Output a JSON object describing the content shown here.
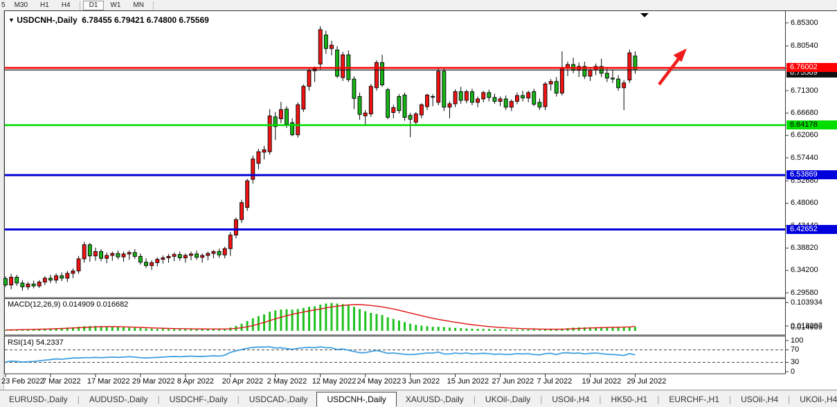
{
  "toolbar": {
    "partial_left": "5",
    "timeframes": [
      "M30",
      "H1",
      "H4",
      "D1",
      "W1",
      "MN"
    ],
    "active": "D1"
  },
  "title": {
    "dropdown_icon": "▼",
    "symbol": "USDCNH-,Daily",
    "ohlc": "6.78455 6.79421 6.74800 6.75569"
  },
  "price_axis": {
    "ticks": [
      6.853,
      6.8054,
      6.7592,
      6.713,
      6.6668,
      6.6206,
      6.5744,
      6.5268,
      6.4806,
      6.4344,
      6.3882,
      6.342,
      6.2958
    ],
    "badges": [
      {
        "text": "6.75569",
        "bg": "#111111",
        "fg": "#ffffff",
        "price": 6.749
      },
      {
        "text": "6.76002",
        "bg": "#fe0000",
        "fg": "#ffffff",
        "price": 6.76002
      },
      {
        "text": "6.64178",
        "bg": "#00dd00",
        "fg": "#000000",
        "price": 6.64178
      },
      {
        "text": "6.53869",
        "bg": "#0000dd",
        "fg": "#ffffff",
        "price": 6.53869
      },
      {
        "text": "6.42652",
        "bg": "#0000dd",
        "fg": "#ffffff",
        "price": 6.42652
      }
    ]
  },
  "hlines": [
    {
      "price": 6.75569,
      "color": "#1a1a1a",
      "width": 1.2
    },
    {
      "price": 6.76002,
      "color": "#fe0000",
      "width": 2.6
    },
    {
      "price": 6.64178,
      "color": "#00dd00",
      "width": 2.6
    },
    {
      "price": 6.53869,
      "color": "#0000d8",
      "width": 3
    },
    {
      "price": 6.42652,
      "color": "#0000d8",
      "width": 3
    }
  ],
  "chart_data": {
    "type": "candlestick",
    "symbol": "USDCNH-",
    "timeframe": "Daily",
    "open": "6.78455",
    "high": "6.79421",
    "low": "6.74800",
    "close": "6.75569",
    "up_color": "#f01414",
    "down_color": "#17b317",
    "wick_color": "#000000",
    "x_label_step": 8,
    "x_labels": [
      "23 Feb 2022",
      "7 Mar 2022",
      "17 Mar 2022",
      "29 Mar 2022",
      "8 Apr 2022",
      "20 Apr 2022",
      "2 May 2022",
      "12 May 2022",
      "24 May 2022",
      "3 Jun 2022",
      "15 Jun 2022",
      "27 Jun 2022",
      "7 Jul 2022",
      "19 Jul 2022",
      "29 Jul 2022"
    ],
    "candles": [
      [
        6.325,
        6.33,
        6.308,
        6.312
      ],
      [
        6.312,
        6.335,
        6.303,
        6.328
      ],
      [
        6.328,
        6.333,
        6.31,
        6.316
      ],
      [
        6.316,
        6.322,
        6.3,
        6.308
      ],
      [
        6.308,
        6.318,
        6.302,
        6.314
      ],
      [
        6.314,
        6.321,
        6.305,
        6.31
      ],
      [
        6.31,
        6.322,
        6.306,
        6.318
      ],
      [
        6.318,
        6.33,
        6.312,
        6.326
      ],
      [
        6.326,
        6.333,
        6.316,
        6.322
      ],
      [
        6.322,
        6.336,
        6.315,
        6.331
      ],
      [
        6.331,
        6.338,
        6.32,
        6.326
      ],
      [
        6.326,
        6.341,
        6.318,
        6.336
      ],
      [
        6.336,
        6.346,
        6.326,
        6.341
      ],
      [
        6.341,
        6.372,
        6.335,
        6.366
      ],
      [
        6.366,
        6.401,
        6.358,
        6.395
      ],
      [
        6.395,
        6.399,
        6.36,
        6.372
      ],
      [
        6.372,
        6.389,
        6.362,
        6.381
      ],
      [
        6.381,
        6.386,
        6.361,
        6.367
      ],
      [
        6.367,
        6.379,
        6.357,
        6.373
      ],
      [
        6.373,
        6.381,
        6.362,
        6.377
      ],
      [
        6.377,
        6.383,
        6.365,
        6.37
      ],
      [
        6.37,
        6.381,
        6.36,
        6.376
      ],
      [
        6.376,
        6.383,
        6.364,
        6.379
      ],
      [
        6.379,
        6.386,
        6.366,
        6.371
      ],
      [
        6.371,
        6.377,
        6.354,
        6.359
      ],
      [
        6.359,
        6.367,
        6.347,
        6.352
      ],
      [
        6.352,
        6.363,
        6.343,
        6.358
      ],
      [
        6.358,
        6.369,
        6.35,
        6.365
      ],
      [
        6.365,
        6.373,
        6.356,
        6.368
      ],
      [
        6.368,
        6.376,
        6.358,
        6.371
      ],
      [
        6.371,
        6.379,
        6.361,
        6.375
      ],
      [
        6.375,
        6.381,
        6.362,
        6.368
      ],
      [
        6.368,
        6.377,
        6.358,
        6.373
      ],
      [
        6.373,
        6.381,
        6.363,
        6.376
      ],
      [
        6.376,
        6.383,
        6.364,
        6.369
      ],
      [
        6.369,
        6.377,
        6.358,
        6.373
      ],
      [
        6.373,
        6.381,
        6.363,
        6.377
      ],
      [
        6.377,
        6.384,
        6.367,
        6.381
      ],
      [
        6.381,
        6.387,
        6.368,
        6.374
      ],
      [
        6.374,
        6.391,
        6.367,
        6.387
      ],
      [
        6.387,
        6.421,
        6.372,
        6.415
      ],
      [
        6.415,
        6.451,
        6.408,
        6.447
      ],
      [
        6.447,
        6.488,
        6.44,
        6.482
      ],
      [
        6.472,
        6.531,
        6.465,
        6.527
      ],
      [
        6.53,
        6.579,
        6.521,
        6.572
      ],
      [
        6.563,
        6.593,
        6.551,
        6.587
      ],
      [
        6.586,
        6.599,
        6.571,
        6.591
      ],
      [
        6.587,
        6.675,
        6.581,
        6.661
      ],
      [
        6.659,
        6.669,
        6.611,
        6.639
      ],
      [
        6.655,
        6.69,
        6.646,
        6.674
      ],
      [
        6.675,
        6.681,
        6.636,
        6.644
      ],
      [
        6.647,
        6.656,
        6.619,
        6.622
      ],
      [
        6.622,
        6.689,
        6.616,
        6.684
      ],
      [
        6.675,
        6.726,
        6.669,
        6.722
      ],
      [
        6.722,
        6.759,
        6.713,
        6.754
      ],
      [
        6.754,
        6.763,
        6.731,
        6.758
      ],
      [
        6.768,
        6.846,
        6.756,
        6.839
      ],
      [
        6.828,
        6.837,
        6.789,
        6.8
      ],
      [
        6.8,
        6.816,
        6.786,
        6.807
      ],
      [
        6.797,
        6.805,
        6.739,
        6.743
      ],
      [
        6.74,
        6.793,
        6.733,
        6.787
      ],
      [
        6.787,
        6.796,
        6.731,
        6.736
      ],
      [
        6.737,
        6.743,
        6.675,
        6.697
      ],
      [
        6.701,
        6.709,
        6.653,
        6.664
      ],
      [
        6.661,
        6.673,
        6.641,
        6.667
      ],
      [
        6.665,
        6.727,
        6.659,
        6.722
      ],
      [
        6.719,
        6.776,
        6.713,
        6.771
      ],
      [
        6.771,
        6.787,
        6.721,
        6.725
      ],
      [
        6.715,
        6.719,
        6.654,
        6.658
      ],
      [
        6.668,
        6.684,
        6.656,
        6.678
      ],
      [
        6.701,
        6.706,
        6.666,
        6.672
      ],
      [
        6.704,
        6.709,
        6.651,
        6.658
      ],
      [
        6.662,
        6.667,
        6.617,
        6.654
      ],
      [
        6.648,
        6.669,
        6.641,
        6.665
      ],
      [
        6.663,
        6.687,
        6.656,
        6.684
      ],
      [
        6.68,
        6.707,
        6.673,
        6.704
      ],
      [
        6.701,
        6.706,
        6.681,
        6.701
      ],
      [
        6.689,
        6.761,
        6.683,
        6.753
      ],
      [
        6.753,
        6.759,
        6.671,
        6.679
      ],
      [
        6.679,
        6.691,
        6.656,
        6.686
      ],
      [
        6.686,
        6.716,
        6.679,
        6.711
      ],
      [
        6.711,
        6.721,
        6.686,
        6.693
      ],
      [
        6.693,
        6.715,
        6.687,
        6.711
      ],
      [
        6.711,
        6.717,
        6.683,
        6.689
      ],
      [
        6.689,
        6.701,
        6.679,
        6.696
      ],
      [
        6.696,
        6.713,
        6.689,
        6.709
      ],
      [
        6.709,
        6.715,
        6.691,
        6.699
      ],
      [
        6.699,
        6.707,
        6.686,
        6.691
      ],
      [
        6.691,
        6.701,
        6.681,
        6.696
      ],
      [
        6.696,
        6.703,
        6.673,
        6.679
      ],
      [
        6.679,
        6.695,
        6.671,
        6.691
      ],
      [
        6.691,
        6.709,
        6.685,
        6.703
      ],
      [
        6.703,
        6.713,
        6.691,
        6.698
      ],
      [
        6.698,
        6.713,
        6.689,
        6.709
      ],
      [
        6.711,
        6.717,
        6.681,
        6.685
      ],
      [
        6.689,
        6.697,
        6.673,
        6.679
      ],
      [
        6.68,
        6.731,
        6.673,
        6.727
      ],
      [
        6.727,
        6.737,
        6.713,
        6.732
      ],
      [
        6.732,
        6.741,
        6.701,
        6.708
      ],
      [
        6.708,
        6.794,
        6.703,
        6.759
      ],
      [
        6.759,
        6.773,
        6.743,
        6.767
      ],
      [
        6.767,
        6.781,
        6.749,
        6.755
      ],
      [
        6.755,
        6.771,
        6.741,
        6.763
      ],
      [
        6.763,
        6.773,
        6.737,
        6.743
      ],
      [
        6.743,
        6.761,
        6.733,
        6.756
      ],
      [
        6.756,
        6.769,
        6.745,
        6.763
      ],
      [
        6.763,
        6.779,
        6.741,
        6.749
      ],
      [
        6.749,
        6.759,
        6.731,
        6.739
      ],
      [
        6.739,
        6.757,
        6.729,
        6.737
      ],
      [
        6.737,
        6.745,
        6.713,
        6.719
      ],
      [
        6.719,
        6.735,
        6.673,
        6.729
      ],
      [
        6.735,
        6.798,
        6.729,
        6.791
      ],
      [
        6.78455,
        6.79421,
        6.748,
        6.75569
      ]
    ]
  },
  "macd": {
    "label": "MACD(12,26,9)",
    "values": "0.014909 0.016682",
    "axis_max": "0.103934",
    "axis_low_labels": [
      "0.018297",
      "0.014909"
    ],
    "hist_color": "#1ec11e",
    "signal_color": "#e01010",
    "histogram": [
      0.003,
      0.004,
      0.004,
      0.005,
      0.005,
      0.006,
      0.007,
      0.008,
      0.009,
      0.01,
      0.011,
      0.012,
      0.013,
      0.015,
      0.017,
      0.018,
      0.018,
      0.017,
      0.016,
      0.015,
      0.014,
      0.013,
      0.012,
      0.011,
      0.01,
      0.009,
      0.008,
      0.007,
      0.007,
      0.006,
      0.006,
      0.006,
      0.006,
      0.006,
      0.006,
      0.006,
      0.006,
      0.007,
      0.007,
      0.008,
      0.012,
      0.018,
      0.026,
      0.036,
      0.046,
      0.054,
      0.06,
      0.07,
      0.075,
      0.078,
      0.079,
      0.078,
      0.08,
      0.084,
      0.088,
      0.09,
      0.096,
      0.1,
      0.102,
      0.1,
      0.098,
      0.094,
      0.088,
      0.08,
      0.072,
      0.066,
      0.062,
      0.058,
      0.05,
      0.044,
      0.038,
      0.032,
      0.026,
      0.022,
      0.019,
      0.017,
      0.015,
      0.015,
      0.014,
      0.012,
      0.011,
      0.01,
      0.009,
      0.008,
      0.0075,
      0.0072,
      0.007,
      0.0065,
      0.006,
      0.0055,
      0.005,
      0.005,
      0.005,
      0.0048,
      0.0045,
      0.0042,
      0.005,
      0.006,
      0.006,
      0.008,
      0.01,
      0.012,
      0.013,
      0.013,
      0.0128,
      0.013,
      0.0135,
      0.0132,
      0.0128,
      0.0125,
      0.012,
      0.014,
      0.0149
    ],
    "signal": [
      0.003,
      0.0035,
      0.004,
      0.0045,
      0.005,
      0.0055,
      0.006,
      0.0065,
      0.007,
      0.0078,
      0.0086,
      0.0095,
      0.0105,
      0.0115,
      0.0125,
      0.0135,
      0.0145,
      0.0152,
      0.0155,
      0.0155,
      0.0152,
      0.0148,
      0.0142,
      0.0135,
      0.0127,
      0.0118,
      0.011,
      0.0102,
      0.0095,
      0.0089,
      0.0084,
      0.008,
      0.0077,
      0.0074,
      0.0072,
      0.007,
      0.0069,
      0.0068,
      0.0068,
      0.0069,
      0.0075,
      0.009,
      0.0115,
      0.015,
      0.0195,
      0.025,
      0.031,
      0.0375,
      0.044,
      0.05,
      0.0555,
      0.0605,
      0.065,
      0.069,
      0.073,
      0.0765,
      0.08,
      0.084,
      0.0875,
      0.0905,
      0.093,
      0.095,
      0.096,
      0.096,
      0.095,
      0.093,
      0.0905,
      0.0875,
      0.084,
      0.08,
      0.0755,
      0.0705,
      0.0655,
      0.0605,
      0.0555,
      0.0505,
      0.046,
      0.042,
      0.0385,
      0.035,
      0.0315,
      0.0283,
      0.0253,
      0.0225,
      0.02,
      0.0178,
      0.0158,
      0.014,
      0.0125,
      0.0112,
      0.01,
      0.009,
      0.0082,
      0.0075,
      0.007,
      0.0065,
      0.0062,
      0.006,
      0.006,
      0.0062,
      0.0068,
      0.0076,
      0.0086,
      0.0096,
      0.0105,
      0.0113,
      0.012,
      0.0126,
      0.0131,
      0.0135,
      0.0139,
      0.0145,
      0.0167
    ]
  },
  "rsi": {
    "label": "RSI(14)",
    "value": "54.2337",
    "line_color": "#3f9fe0",
    "levels": [
      100,
      70,
      30,
      0
    ],
    "values": [
      31,
      34,
      33,
      31,
      32,
      33,
      35,
      37,
      39,
      41,
      40,
      42,
      44,
      44,
      45,
      45,
      46,
      45,
      46,
      47,
      46,
      47,
      48,
      47,
      45,
      44,
      45,
      46,
      47,
      48,
      49,
      48,
      49,
      50,
      49,
      49,
      50,
      51,
      50,
      53,
      62,
      67,
      71,
      75,
      78,
      79,
      79,
      80,
      76,
      77,
      74,
      72,
      75,
      77,
      78,
      77,
      80,
      77,
      77,
      71,
      73,
      69,
      65,
      61,
      61,
      65,
      68,
      64,
      59,
      60,
      58,
      56,
      55,
      56,
      58,
      60,
      60,
      63,
      57,
      57,
      60,
      58,
      60,
      57,
      58,
      59,
      58,
      56,
      57,
      55,
      56,
      58,
      57,
      58,
      55,
      54,
      58,
      59,
      55,
      60,
      61,
      59,
      60,
      57,
      59,
      60,
      58,
      56,
      55,
      54,
      52,
      58,
      54.23
    ]
  },
  "annotations": {
    "arrow_color": "#ee1c1c"
  },
  "tabs": {
    "items": [
      "EURUSD-,Daily",
      "AUDUSD-,Daily",
      "USDCHF-,Daily",
      "USDCAD-,Daily",
      "USDCNH-,Daily",
      "XAUUSD-,Daily",
      "UKOil-,Daily",
      "USOil-,H4",
      "HK50-,H1",
      "EURCHF-,H1",
      "USOil-,H4",
      "UKOil-,H4"
    ],
    "active_index": 4,
    "scroll_left_icon": "◄",
    "scroll_right_icon": "►"
  }
}
